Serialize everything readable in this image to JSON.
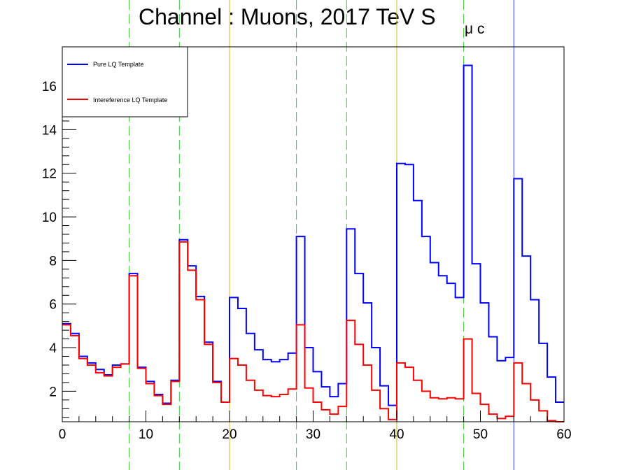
{
  "chart_data": {
    "type": "step",
    "title": "Channel : Muons, 2017 TeV S",
    "title_subscript": "μ c",
    "xlabel": "",
    "ylabel": "",
    "xlim": [
      0,
      60
    ],
    "ylim": [
      0.6,
      17.8
    ],
    "x_ticks": [
      0,
      10,
      20,
      30,
      40,
      50,
      60
    ],
    "y_ticks": [
      2,
      4,
      6,
      8,
      10,
      12,
      14,
      16
    ],
    "bin_width": 1,
    "legend_position": "top-left",
    "series": [
      {
        "name": "Pure LQ Template",
        "color": "#0000ff",
        "values": [
          5.1,
          4.65,
          3.6,
          3.3,
          3.0,
          2.75,
          3.2,
          3.25,
          7.4,
          3.1,
          2.45,
          1.85,
          1.45,
          2.5,
          8.95,
          7.75,
          6.35,
          4.25,
          2.45,
          1.5,
          6.3,
          5.8,
          4.65,
          3.9,
          3.45,
          3.35,
          3.45,
          3.75,
          9.1,
          4.0,
          2.9,
          2.2,
          1.75,
          2.35,
          9.45,
          7.4,
          6.05,
          4.0,
          2.25,
          1.35,
          12.45,
          12.4,
          10.75,
          9.1,
          7.9,
          7.3,
          6.95,
          6.3,
          16.95,
          7.85,
          6.05,
          4.5,
          3.4,
          3.55,
          11.75,
          8.2,
          6.2,
          4.2,
          2.65,
          1.5
        ]
      },
      {
        "name": "Intereference LQ Template",
        "color": "#ff0000",
        "values": [
          5.05,
          4.55,
          3.5,
          3.2,
          2.85,
          2.7,
          3.1,
          3.25,
          7.3,
          3.05,
          2.35,
          1.8,
          1.4,
          2.45,
          8.85,
          7.55,
          6.2,
          4.15,
          2.4,
          1.5,
          3.5,
          3.2,
          2.5,
          2.05,
          1.8,
          1.75,
          1.85,
          2.1,
          5.05,
          2.15,
          1.5,
          1.15,
          0.95,
          1.3,
          5.25,
          4.15,
          3.2,
          2.05,
          1.2,
          0.7,
          3.3,
          3.1,
          2.5,
          2.0,
          1.7,
          1.65,
          1.7,
          1.65,
          4.4,
          1.9,
          1.4,
          0.95,
          0.75,
          0.85,
          3.3,
          2.35,
          1.6,
          1.1,
          0.65,
          0.6
        ]
      }
    ],
    "vertical_lines": [
      {
        "x": 8,
        "color": "#33cc33",
        "style": "dashed"
      },
      {
        "x": 14,
        "color": "#33cc33",
        "style": "dashed"
      },
      {
        "x": 20,
        "color": "#ddbb22",
        "style": "solid"
      },
      {
        "x": 28,
        "color": "#33cc33",
        "style": "dashed"
      },
      {
        "x": 34,
        "color": "#33cc33",
        "style": "dashed"
      },
      {
        "x": 40,
        "color": "#ddbb22",
        "style": "solid"
      },
      {
        "x": 48,
        "color": "#33cc33",
        "style": "dashed"
      },
      {
        "x": 54,
        "color": "#3344ff",
        "style": "solid"
      }
    ]
  }
}
